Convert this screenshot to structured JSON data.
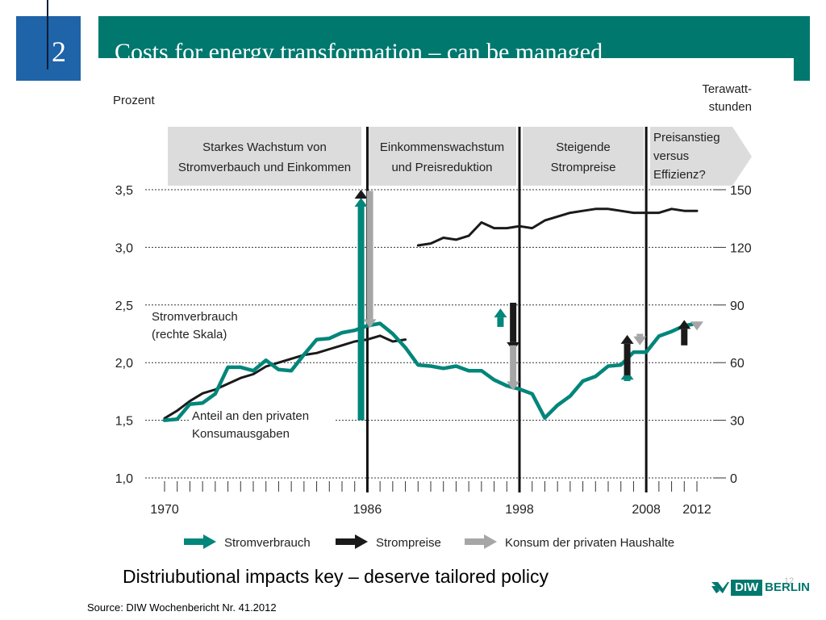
{
  "slide": {
    "section_number": "2",
    "title": "Costs for energy transformation – can be managed",
    "caption": "Distriubutional impacts key – deserve tailored policy",
    "source": "Source: DIW Wochenbericht Nr. 41.2012",
    "page_number": "12",
    "logo": {
      "left": "DIW",
      "right": "BERLIN"
    }
  },
  "colors": {
    "teal": "#00867a",
    "black": "#1a1a1a",
    "gray": "#a6a6a6",
    "phase_box": "#dcdcdc",
    "header": "#00786e",
    "number_box": "#1f63a8"
  },
  "chart_data": {
    "type": "line",
    "y_left": {
      "label": "Prozent",
      "range": [
        1.0,
        3.5
      ],
      "ticks": [
        "1,0",
        "1,5",
        "2,0",
        "2,5",
        "3,0",
        "3,5"
      ]
    },
    "y_right": {
      "label_line1": "Terawatt-",
      "label_line2": "stunden",
      "range": [
        0,
        150
      ],
      "ticks": [
        "0",
        "30",
        "60",
        "90",
        "120",
        "150"
      ]
    },
    "x_range": [
      1970,
      2012
    ],
    "x_tick_labels": [
      "1970",
      "1986",
      "1998",
      "2008",
      "2012"
    ],
    "phase_dividers": [
      1986,
      1998,
      2008
    ],
    "phases": [
      {
        "line1": "Starkes Wachstum von",
        "line2": "Stromverbauch und Einkommen",
        "from": 1970,
        "to": 1986
      },
      {
        "line1": "Einkommenswachstum",
        "line2": "und Preisreduktion",
        "from": 1986,
        "to": 1998
      },
      {
        "line1": "Steigende",
        "line2": "Strompreise",
        "from": 1998,
        "to": 2008
      },
      {
        "line1": "Preisanstieg",
        "line2": "versus",
        "line3": "Effizienz?",
        "from": 2008,
        "to": 2012
      }
    ],
    "series": [
      {
        "label_line1": "Stromverbrauch",
        "label_line2": "(rechte Skala)",
        "axis": "right",
        "color": "#1a1a1a",
        "segments": [
          [
            [
              1970,
              31
            ],
            [
              1971,
              35
            ],
            [
              1972,
              40
            ],
            [
              1973,
              44
            ],
            [
              1974,
              46
            ],
            [
              1975,
              49
            ],
            [
              1976,
              52
            ],
            [
              1977,
              54
            ],
            [
              1978,
              58
            ],
            [
              1979,
              60
            ],
            [
              1980,
              62
            ],
            [
              1981,
              64
            ],
            [
              1982,
              65
            ],
            [
              1983,
              67
            ],
            [
              1984,
              69
            ],
            [
              1985,
              71
            ],
            [
              1986,
              72
            ],
            [
              1987,
              74
            ],
            [
              1988,
              71
            ],
            [
              1989,
              72
            ]
          ],
          [
            [
              1990,
              121
            ],
            [
              1991,
              122
            ],
            [
              1992,
              125
            ],
            [
              1993,
              124
            ],
            [
              1994,
              126
            ],
            [
              1995,
              133
            ],
            [
              1996,
              130
            ],
            [
              1997,
              130
            ],
            [
              1998,
              131
            ],
            [
              1999,
              130
            ],
            [
              2000,
              134
            ],
            [
              2001,
              136
            ],
            [
              2002,
              138
            ],
            [
              2003,
              139
            ],
            [
              2004,
              140
            ],
            [
              2005,
              140
            ],
            [
              2006,
              139
            ],
            [
              2007,
              138
            ],
            [
              2008,
              138
            ],
            [
              2009,
              138
            ],
            [
              2010,
              140
            ],
            [
              2011,
              139
            ],
            [
              2012,
              139
            ]
          ]
        ]
      },
      {
        "label_line1": "Anteil an den privaten",
        "label_line2": "Konsumausgaben",
        "axis": "left",
        "color": "#00867a",
        "segments": [
          [
            [
              1970,
              1.5
            ],
            [
              1971,
              1.51
            ],
            [
              1972,
              1.64
            ],
            [
              1973,
              1.65
            ],
            [
              1974,
              1.73
            ],
            [
              1975,
              1.96
            ],
            [
              1976,
              1.96
            ],
            [
              1977,
              1.93
            ],
            [
              1978,
              2.02
            ],
            [
              1979,
              1.94
            ],
            [
              1980,
              1.93
            ],
            [
              1981,
              2.07
            ],
            [
              1982,
              2.2
            ],
            [
              1983,
              2.21
            ],
            [
              1984,
              2.26
            ],
            [
              1985,
              2.28
            ],
            [
              1986,
              2.32
            ],
            [
              1987,
              2.34
            ],
            [
              1988,
              2.25
            ],
            [
              1989,
              2.13
            ],
            [
              1990,
              1.98
            ],
            [
              1991,
              1.97
            ],
            [
              1992,
              1.95
            ],
            [
              1993,
              1.97
            ],
            [
              1994,
              1.93
            ],
            [
              1995,
              1.93
            ],
            [
              1996,
              1.85
            ],
            [
              1997,
              1.8
            ],
            [
              1998,
              1.77
            ],
            [
              1999,
              1.73
            ],
            [
              2000,
              1.52
            ],
            [
              2001,
              1.63
            ],
            [
              2002,
              1.71
            ],
            [
              2003,
              1.84
            ],
            [
              2004,
              1.88
            ],
            [
              2005,
              1.97
            ],
            [
              2006,
              1.98
            ],
            [
              2007,
              2.09
            ],
            [
              2008,
              2.09
            ],
            [
              2009,
              2.23
            ],
            [
              2010,
              2.27
            ],
            [
              2011,
              2.32
            ],
            [
              2012,
              2.34
            ]
          ]
        ]
      }
    ],
    "arrows": [
      {
        "color": "teal",
        "x": 1985.5,
        "from": 1.5,
        "to": 3.43
      },
      {
        "color": "black",
        "x": 1985.5,
        "from": 3.43,
        "to": 3.5
      },
      {
        "color": "gray",
        "x": 1986.2,
        "from": 3.49,
        "to": 2.3
      },
      {
        "color": "teal",
        "x": 1996.5,
        "from": 2.31,
        "to": 2.47
      },
      {
        "color": "black",
        "x": 1997.5,
        "from": 2.52,
        "to": 2.1
      },
      {
        "color": "gray",
        "x": 1997.5,
        "from": 2.15,
        "to": 1.76
      },
      {
        "color": "teal",
        "x": 2006.5,
        "from": 1.84,
        "to": 1.93
      },
      {
        "color": "black",
        "x": 2006.5,
        "from": 1.89,
        "to": 2.24
      },
      {
        "color": "gray",
        "x": 2007.5,
        "from": 2.25,
        "to": 2.15
      },
      {
        "color": "black",
        "x": 2011.0,
        "from": 2.15,
        "to": 2.37
      },
      {
        "color": "gray",
        "x": 2012.0,
        "from": 2.36,
        "to": 2.28
      }
    ],
    "legend": [
      {
        "label": "Stromverbrauch",
        "color": "teal"
      },
      {
        "label": "Strompreise",
        "color": "black"
      },
      {
        "label": "Konsum der privaten Haushalte",
        "color": "gray"
      }
    ],
    "legend_position": "bottom",
    "grid": "dashed horizontal"
  }
}
